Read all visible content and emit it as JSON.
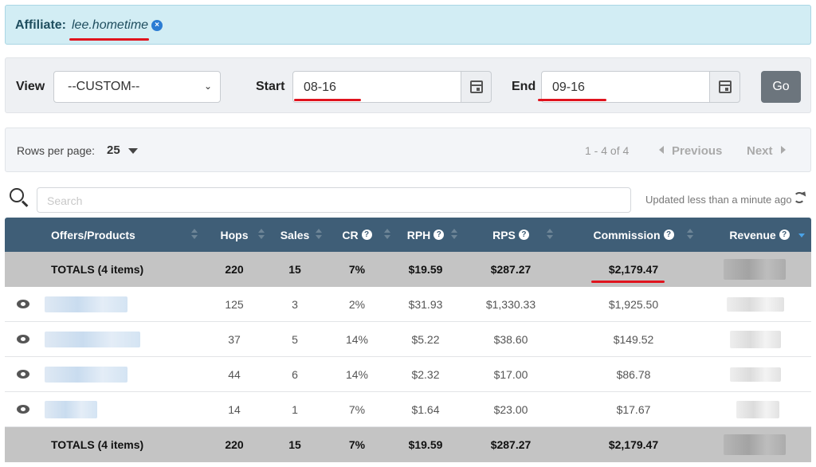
{
  "affiliate": {
    "label": "Affiliate:",
    "name": "lee.hometime",
    "close_glyph": "×"
  },
  "filters": {
    "view_label": "View",
    "view_value": "--CUSTOM--",
    "start_label": "Start",
    "start_value": "08-16",
    "end_label": "End",
    "end_value": "09-16",
    "go_label": "Go"
  },
  "pager": {
    "rows_label": "Rows per page:",
    "rows_value": "25",
    "range": "1 - 4 of 4",
    "previous": "Previous",
    "next": "Next"
  },
  "search": {
    "placeholder": "Search",
    "updated": "Updated less than a minute ago"
  },
  "table": {
    "headers": {
      "offer": "Offers/Products",
      "hops": "Hops",
      "sales": "Sales",
      "cr": "CR",
      "rph": "RPH",
      "rps": "RPS",
      "commission": "Commission",
      "revenue": "Revenue"
    },
    "totals_top": {
      "label": "TOTALS (4 items)",
      "hops": "220",
      "sales": "15",
      "cr": "7%",
      "rph": "$19.59",
      "rps": "$287.27",
      "commission": "$2,179.47"
    },
    "rows": [
      {
        "hops": "125",
        "sales": "3",
        "cr": "2%",
        "rph": "$31.93",
        "rps": "$1,330.33",
        "commission": "$1,925.50"
      },
      {
        "hops": "37",
        "sales": "5",
        "cr": "14%",
        "rph": "$5.22",
        "rps": "$38.60",
        "commission": "$149.52"
      },
      {
        "hops": "44",
        "sales": "6",
        "cr": "14%",
        "rph": "$2.32",
        "rps": "$17.00",
        "commission": "$86.78"
      },
      {
        "hops": "14",
        "sales": "1",
        "cr": "7%",
        "rph": "$1.64",
        "rps": "$23.00",
        "commission": "$17.67"
      }
    ],
    "totals_bottom": {
      "label": "TOTALS (4 items)",
      "hops": "220",
      "sales": "15",
      "cr": "7%",
      "rph": "$19.59",
      "rps": "$287.27",
      "commission": "$2,179.47"
    }
  },
  "icons": {
    "close": "close-circle-icon",
    "calendar": "calendar-icon",
    "search": "search-icon",
    "refresh": "refresh-icon",
    "view": "eye-icon",
    "help": "question-circle-icon"
  },
  "colors": {
    "banner_bg": "#d2edf4",
    "table_header": "#3f5e77",
    "totals_bg": "#c4c4c4",
    "highlight": "#e0141e",
    "go_button": "#6c757d"
  }
}
